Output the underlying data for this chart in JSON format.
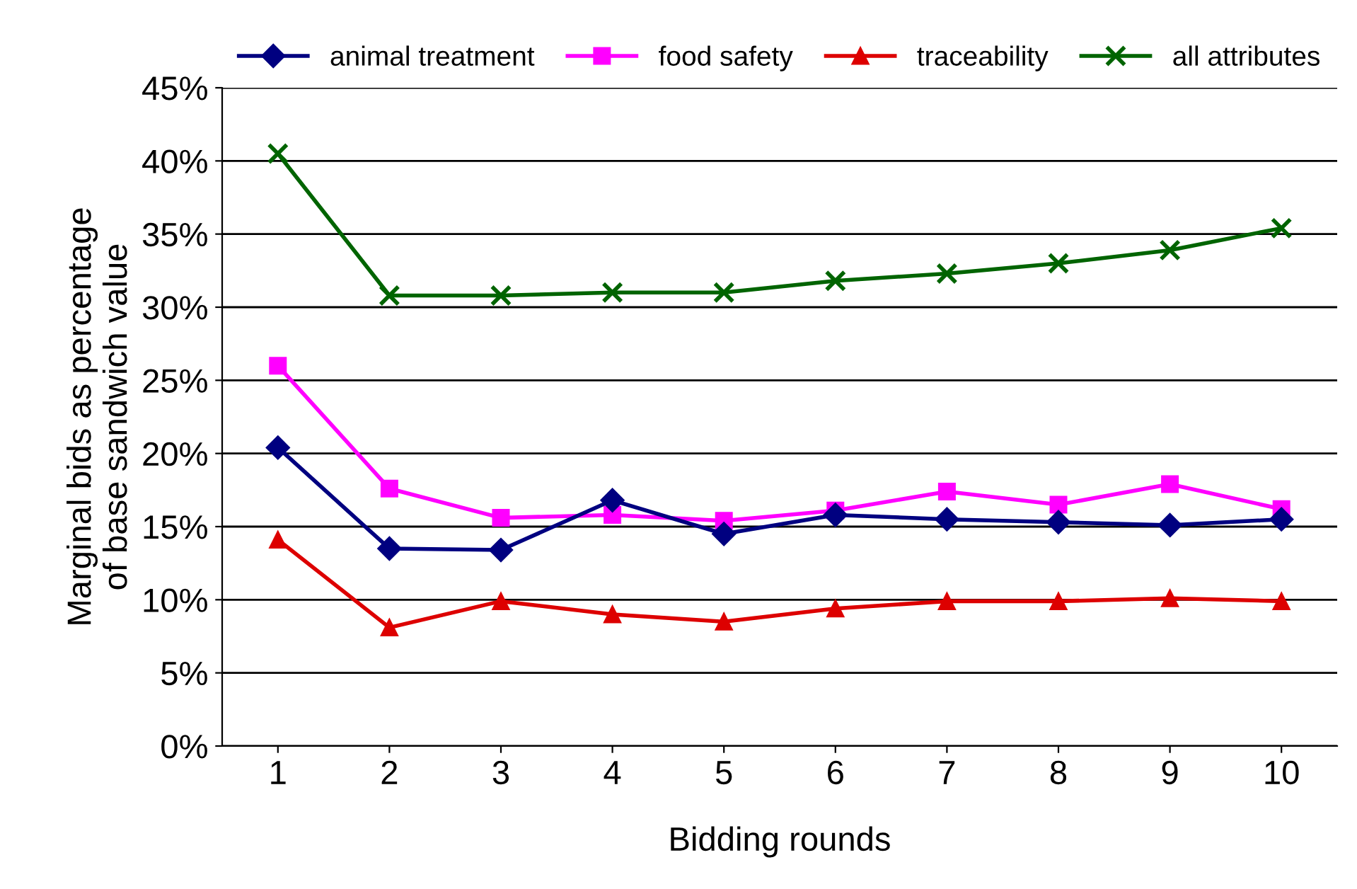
{
  "chart_data": {
    "type": "line",
    "xlabel": "Bidding rounds",
    "ylabel": "Marginal bids as percentage\nof base sandwich value",
    "categories": [
      "1",
      "2",
      "3",
      "4",
      "5",
      "6",
      "7",
      "8",
      "9",
      "10"
    ],
    "series": [
      {
        "name": "animal treatment",
        "color": "#000080",
        "marker": "diamond",
        "values": [
          20.4,
          13.5,
          13.4,
          16.8,
          14.5,
          15.8,
          15.5,
          15.3,
          15.1,
          15.5
        ]
      },
      {
        "name": "food safety",
        "color": "#ff00ff",
        "marker": "square",
        "values": [
          26.0,
          17.6,
          15.6,
          15.8,
          15.4,
          16.1,
          17.4,
          16.5,
          17.9,
          16.2
        ]
      },
      {
        "name": "traceability",
        "color": "#dd0000",
        "marker": "triangle",
        "values": [
          14.1,
          8.1,
          9.9,
          9.0,
          8.5,
          9.4,
          9.9,
          9.9,
          10.1,
          9.9
        ]
      },
      {
        "name": "all attributes",
        "color": "#006400",
        "marker": "cross",
        "values": [
          40.5,
          30.8,
          30.8,
          31.0,
          31.0,
          31.8,
          32.3,
          33.0,
          33.9,
          35.4
        ]
      }
    ],
    "ylim": [
      0,
      45
    ],
    "yticks": [
      {
        "value": 0,
        "label": "0%"
      },
      {
        "value": 5,
        "label": "5%"
      },
      {
        "value": 10,
        "label": "10%"
      },
      {
        "value": 15,
        "label": "15%"
      },
      {
        "value": 20,
        "label": "20%"
      },
      {
        "value": 25,
        "label": "25%"
      },
      {
        "value": 30,
        "label": "30%"
      },
      {
        "value": 35,
        "label": "35%"
      },
      {
        "value": 40,
        "label": "40%"
      },
      {
        "value": 45,
        "label": "45%"
      }
    ],
    "grid": "y",
    "legend": "top",
    "line_style": "solid"
  }
}
